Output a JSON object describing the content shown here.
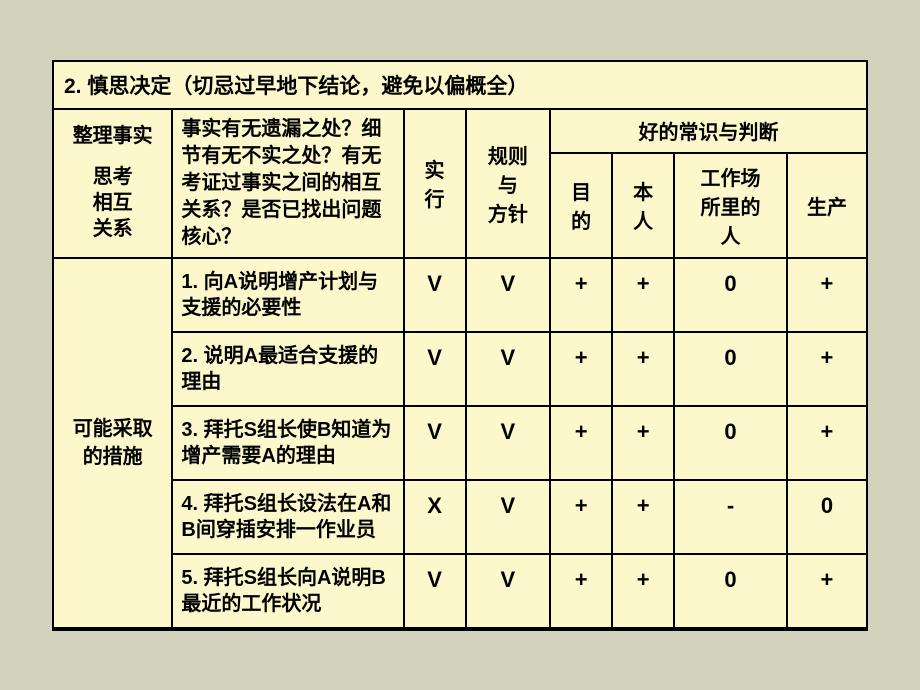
{
  "title": "2. 慎思决定（切忌过早地下结论，避免以偏概全）",
  "header": {
    "left_top": "整理事实",
    "left_bottom": "思考\n相互\n关系",
    "questions": "事实有无遗漏之处？细节有无不实之处？有无考证过事实之间的相互关系？是否已找出问题核心？",
    "col_exec": "实\n行",
    "col_rule": "规则\n与\n方针",
    "judgment_group": "好的常识与判断",
    "j1": "目\n的",
    "j2": "本\n人",
    "j3": "工作场\n所里的\n人",
    "j4": "生产"
  },
  "row_label": "可能采取\n的措施",
  "rows": [
    {
      "action": "1. 向A说明增产计划与支援的必要性",
      "c": [
        "V",
        "V",
        "+",
        "+",
        "0",
        "+"
      ]
    },
    {
      "action": "2. 说明A最适合支援的理由",
      "c": [
        "V",
        "V",
        "+",
        "+",
        "0",
        "+"
      ]
    },
    {
      "action": "3. 拜托S组长使B知道为增产需要A的理由",
      "c": [
        "V",
        "V",
        "+",
        "+",
        "0",
        "+"
      ]
    },
    {
      "action": "4. 拜托S组长设法在A和B间穿插安排一作业员",
      "c": [
        "X",
        "V",
        "+",
        "+",
        "-",
        "0"
      ]
    },
    {
      "action": "5. 拜托S组长向A说明B最近的工作状况",
      "c": [
        "V",
        "V",
        "+",
        "+",
        "0",
        "+"
      ]
    }
  ],
  "style": {
    "background": "#fdf8cc",
    "border_color": "#000000",
    "text_color": "#000000",
    "outer_bg": "#d3d3bd"
  }
}
